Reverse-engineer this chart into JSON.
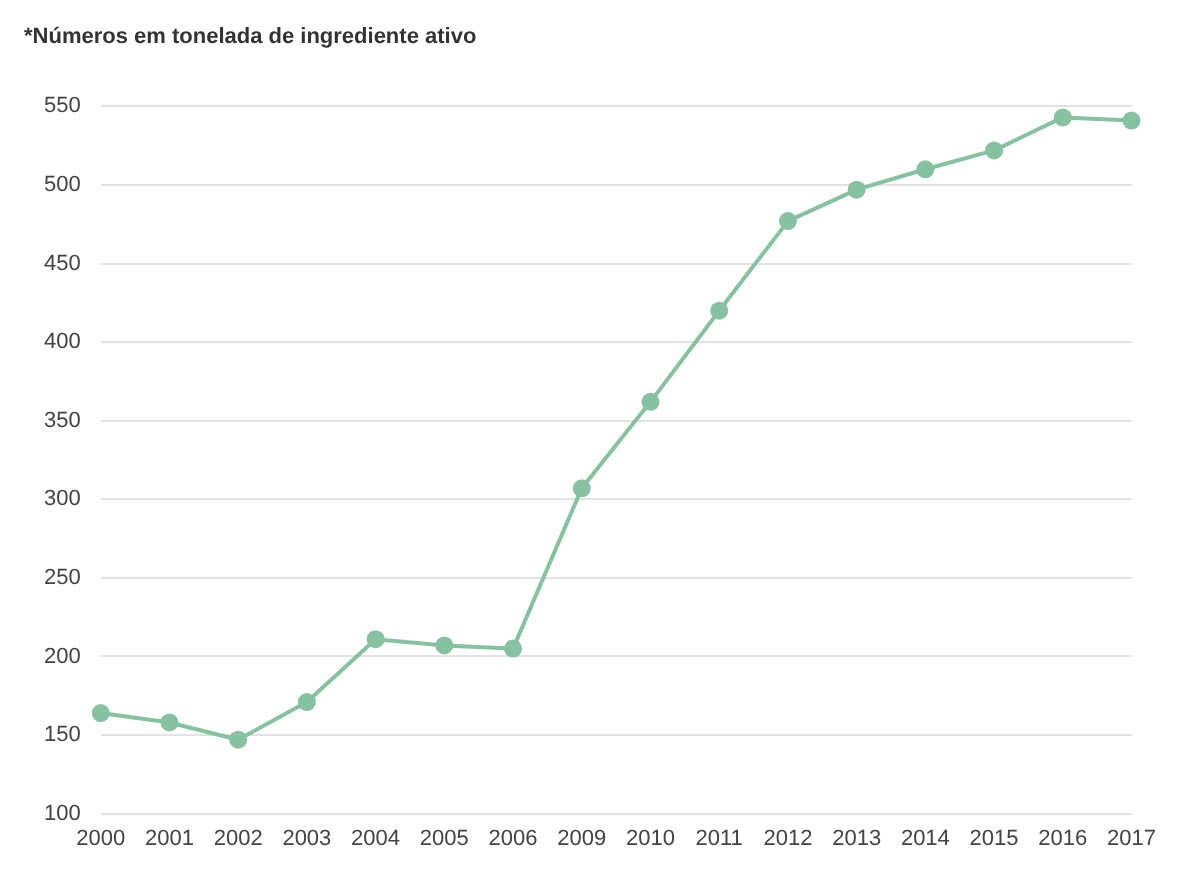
{
  "chart_data": {
    "type": "line",
    "title": "*Números em tonelada de ingrediente ativo",
    "categories": [
      "2000",
      "2001",
      "2002",
      "2003",
      "2004",
      "2005",
      "2006",
      "2009",
      "2010",
      "2011",
      "2012",
      "2013",
      "2014",
      "2015",
      "2016",
      "2017"
    ],
    "series": [
      {
        "color": "#86c2a0",
        "values": [
          164,
          158,
          147,
          171,
          211,
          207,
          205,
          307,
          362,
          420,
          477,
          497,
          510,
          522,
          543,
          541
        ]
      }
    ],
    "ylim": [
      100,
      550
    ],
    "yticks": [
      100,
      150,
      200,
      250,
      300,
      350,
      400,
      450,
      500,
      550
    ],
    "grid": "y",
    "marker": "circle",
    "legend": false
  }
}
